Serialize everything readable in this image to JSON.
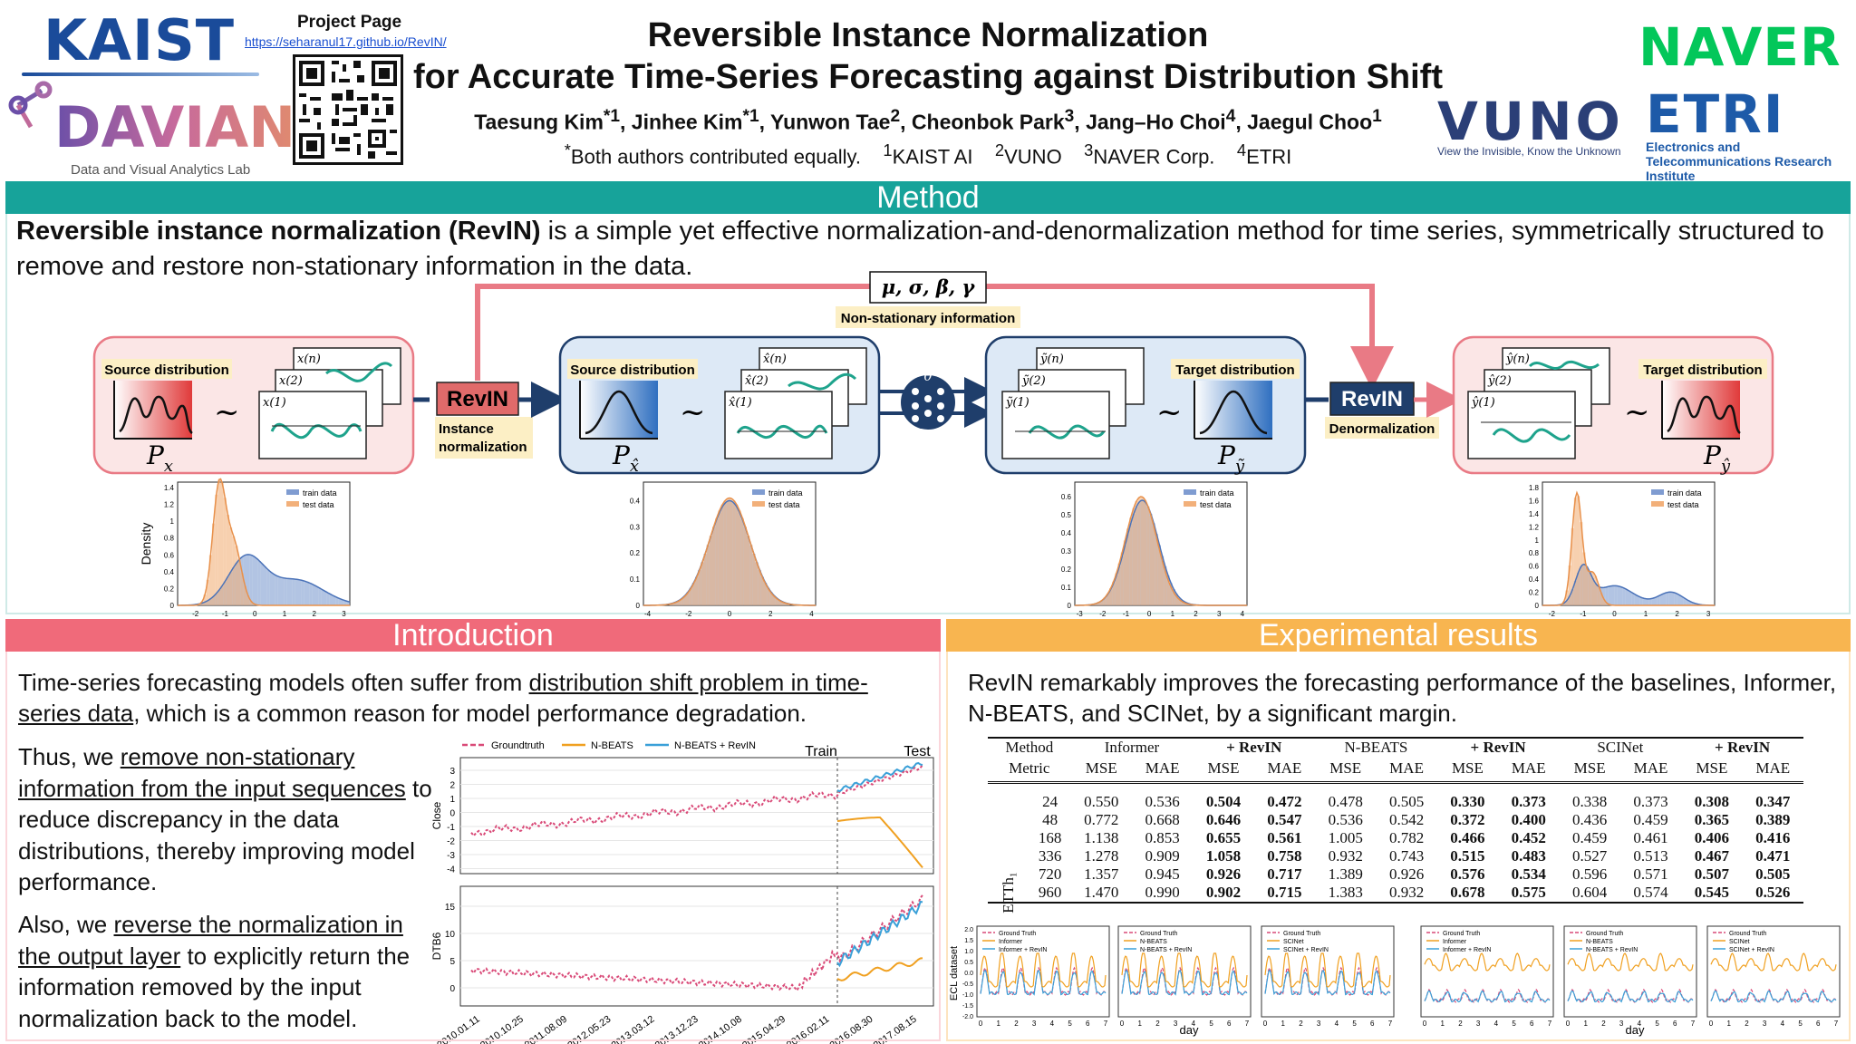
{
  "header": {
    "kaist_logo": "KAIST",
    "davian_logo": "DAVIAN",
    "davian_sub": "Data and Visual Analytics Lab",
    "project_page_label": "Project Page",
    "project_page_url": "https://seharanul17.github.io/RevIN/",
    "title_line1": "Reversible Instance Normalization",
    "title_line2": "for Accurate Time-Series Forecasting against Distribution Shift",
    "authors": [
      {
        "name": "Taesung Kim",
        "sup": "*1"
      },
      {
        "name": "Jinhee Kim",
        "sup": "*1"
      },
      {
        "name": "Yunwon Tae",
        "sup": "2"
      },
      {
        "name": "Cheonbok Park",
        "sup": "3"
      },
      {
        "name": "Jang–Ho Choi",
        "sup": "4"
      },
      {
        "name": "Jaegul Choo",
        "sup": "1"
      }
    ],
    "equal_note": "Both authors contributed equally.",
    "affiliations": [
      {
        "sup": "1",
        "name": "KAIST AI"
      },
      {
        "sup": "2",
        "name": "VUNO"
      },
      {
        "sup": "3",
        "name": "NAVER Corp."
      },
      {
        "sup": "4",
        "name": "ETRI"
      }
    ],
    "naver_logo": "NAVER",
    "vuno_logo": "VUNO",
    "vuno_tagline": "View the Invisible, Know the Unknown",
    "etri_logo": "ETRI",
    "etri_sub": "Electronics and Telecommunications Research Institute"
  },
  "method": {
    "heading": "Method",
    "lead_bold": "Reversible instance normalization (RevIN)",
    "lead_rest": " is a simple yet effective normalization-and-denormalization method for time series, symmetrically structured to remove and restore non-stationary information in the data.",
    "params": "μ,  σ,  β,  γ",
    "nonstationary_label": "Non-stationary information",
    "source_distribution": "Source distribution",
    "target_distribution": "Target distribution",
    "revin_label": "RevIN",
    "instance_norm_l1": "Instance",
    "instance_norm_l2": "normalization",
    "denorm_label": "Denormalization",
    "p_x": "P",
    "p_x_sub": "x",
    "p_xhat_sub": "x̂",
    "p_ytilde_sub": "ỹ",
    "p_yhat_sub": "ŷ",
    "theta": "θ",
    "density_label": "Density",
    "legend_train": "train data",
    "legend_test": "test data",
    "series_x": [
      "x(1)",
      "x(2)",
      "x(n)"
    ],
    "series_xhat": [
      "x̂(1)",
      "x̂(2)",
      "x̂(n)"
    ],
    "series_ytilde": [
      "ỹ(1)",
      "ỹ(2)",
      "ỹ(n)"
    ],
    "series_yhat": [
      "ŷ(1)",
      "ŷ(2)",
      "ŷ(n)"
    ]
  },
  "intro": {
    "heading": "Introduction",
    "p1_a": "Time-series forecasting models often suffer from ",
    "p1_u": "distribution shift problem in time-series data",
    "p1_b": ", which is a common reason for model performance degradation.",
    "p2_a": "Thus, we ",
    "p2_u": "remove non-stationary information from the input sequences",
    "p2_b": " to reduce discrepancy in the data distributions, thereby improving model performance.",
    "p3_a": "Also, we ",
    "p3_u": "reverse the normalization in the output layer",
    "p3_b": " to explicitly return the information removed by the input normalization back to the model.",
    "chart_legend": [
      "Groundtruth",
      "N-BEATS",
      "N-BEATS + RevIN"
    ],
    "train_label": "Train",
    "test_label": "Test",
    "ylabel_top": "Close",
    "ylabel_bottom": "DTB6",
    "dates": [
      "2010.01.11",
      "2010.10.25",
      "2011.08.09",
      "2012.05.23",
      "2013.03.12",
      "2013.12.23",
      "2014.10.08",
      "2015.04.29",
      "2016.02.11",
      "2016.08.30",
      "2017.08.15"
    ]
  },
  "experiments": {
    "heading": "Experimental results",
    "p1": "RevIN remarkably improves the forecasting performance of the baselines, Informer, N-BEATS, and SCINet, by a significant margin.",
    "table": {
      "col_method": "Method",
      "col_metric": "Metric",
      "groups": [
        "Informer",
        "+ RevIN",
        "N-BEATS",
        "+ RevIN",
        "SCINet",
        "+ RevIN"
      ],
      "metrics": [
        "MSE",
        "MAE"
      ],
      "dataset": "ETTh₁",
      "rows": [
        {
          "h": "24",
          "v": [
            "0.550",
            "0.536",
            "0.504",
            "0.472",
            "0.478",
            "0.505",
            "0.330",
            "0.373",
            "0.338",
            "0.373",
            "0.308",
            "0.347"
          ]
        },
        {
          "h": "48",
          "v": [
            "0.772",
            "0.668",
            "0.646",
            "0.547",
            "0.536",
            "0.542",
            "0.372",
            "0.400",
            "0.436",
            "0.459",
            "0.365",
            "0.389"
          ]
        },
        {
          "h": "168",
          "v": [
            "1.138",
            "0.853",
            "0.655",
            "0.561",
            "1.005",
            "0.782",
            "0.466",
            "0.452",
            "0.459",
            "0.461",
            "0.406",
            "0.416"
          ]
        },
        {
          "h": "336",
          "v": [
            "1.278",
            "0.909",
            "1.058",
            "0.758",
            "0.932",
            "0.743",
            "0.515",
            "0.483",
            "0.527",
            "0.513",
            "0.467",
            "0.471"
          ]
        },
        {
          "h": "720",
          "v": [
            "1.357",
            "0.945",
            "0.926",
            "0.717",
            "1.389",
            "0.926",
            "0.576",
            "0.534",
            "0.596",
            "0.571",
            "0.507",
            "0.505"
          ]
        },
        {
          "h": "960",
          "v": [
            "1.470",
            "0.990",
            "0.902",
            "0.715",
            "1.383",
            "0.932",
            "0.678",
            "0.575",
            "0.604",
            "0.574",
            "0.545",
            "0.526"
          ]
        }
      ]
    },
    "ecl_ylabel": "ECL dataset",
    "day_label": "day",
    "minis": [
      [
        "Ground Truth",
        "Informer",
        "Informer + RevIN"
      ],
      [
        "Ground Truth",
        "N-BEATS",
        "N-BEATS + RevIN"
      ],
      [
        "Ground Truth",
        "SCINet",
        "SCINet + RevIN"
      ],
      [
        "Ground Truth",
        "Informer",
        "Informer + RevIN"
      ],
      [
        "Ground Truth",
        "N-BEATS",
        "N-BEATS + RevIN"
      ],
      [
        "Ground Truth",
        "SCINet",
        "SCINet + RevIN"
      ]
    ]
  },
  "colors": {
    "teal": "#17a39a",
    "pink": "#f06a7a",
    "orange": "#f8b550",
    "train_blue": "#7f9cd1",
    "test_orange": "#f2b07a"
  }
}
